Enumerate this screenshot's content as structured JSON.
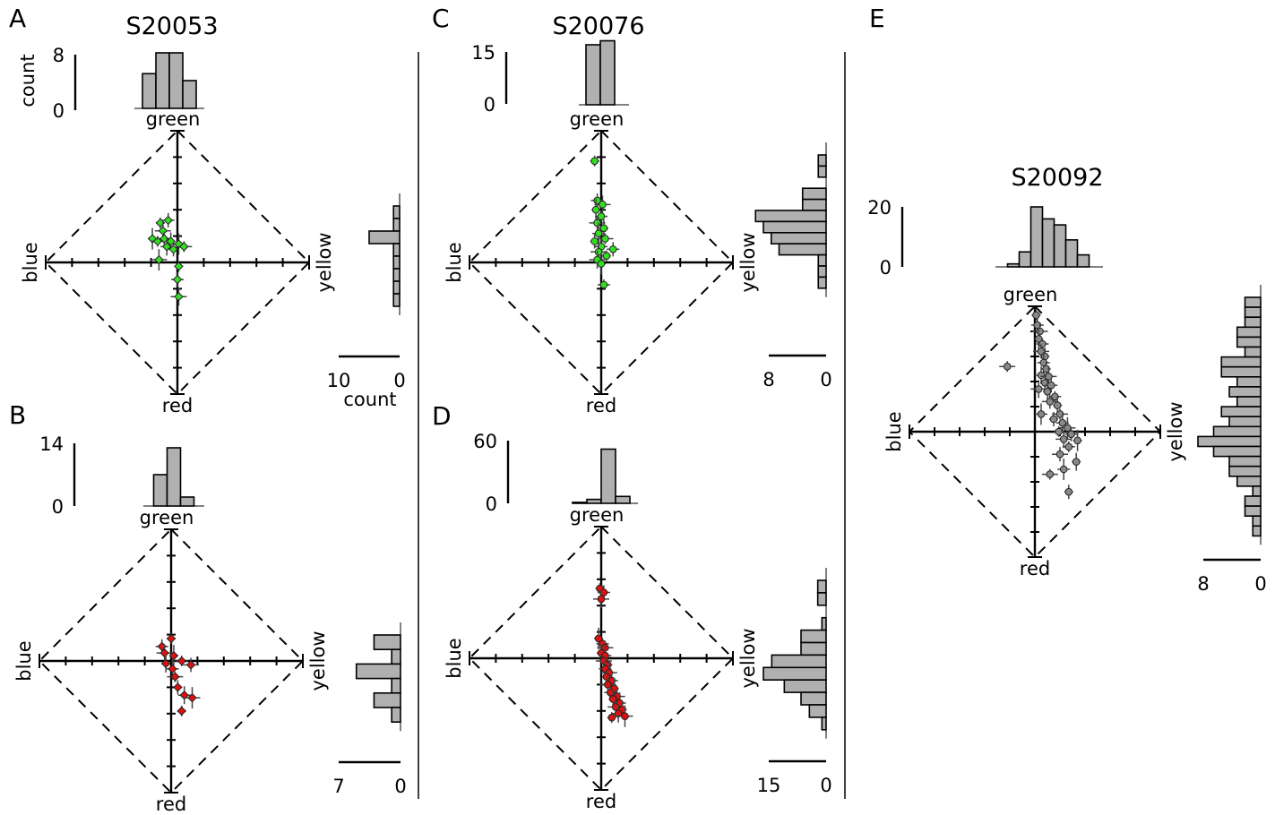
{
  "colors": {
    "green_marker": "#33dd22",
    "red_marker": "#dd1111",
    "gray_marker": "#888888",
    "bar_fill": "#b0b0b0",
    "line": "#000000"
  },
  "chart_data": [
    {
      "id": "A",
      "type": "scatter",
      "letter": "A",
      "title": "S20053",
      "axis_labels": {
        "top": "green",
        "bottom": "red",
        "left": "blue",
        "right": "yellow"
      },
      "xlim": [
        -1,
        1
      ],
      "ylim": [
        -1,
        1
      ],
      "marker_color": "#33dd22",
      "marker_shape": "diamond",
      "points": [
        {
          "x": -0.13,
          "y": 0.3
        },
        {
          "x": -0.07,
          "y": 0.32
        },
        {
          "x": -0.11,
          "y": 0.24
        },
        {
          "x": -0.19,
          "y": 0.18
        },
        {
          "x": -0.15,
          "y": 0.16
        },
        {
          "x": -0.1,
          "y": 0.18
        },
        {
          "x": -0.05,
          "y": 0.16
        },
        {
          "x": 0.01,
          "y": 0.14
        },
        {
          "x": 0.05,
          "y": 0.12
        },
        {
          "x": -0.03,
          "y": 0.1
        },
        {
          "x": -0.08,
          "y": 0.12
        },
        {
          "x": -0.14,
          "y": 0.02
        },
        {
          "x": 0.01,
          "y": -0.03
        },
        {
          "x": 0.0,
          "y": -0.13
        },
        {
          "x": 0.01,
          "y": -0.26
        }
      ],
      "top_hist": {
        "scale_max": 8,
        "scale_min": 0,
        "scale_label": "count",
        "counts": [
          5,
          8,
          8,
          4
        ]
      },
      "right_hist": {
        "scale_max": 10,
        "scale_min": 0,
        "scale_label": "count",
        "counts": [
          1,
          1,
          5,
          1,
          1,
          1,
          1,
          1
        ]
      }
    },
    {
      "id": "B",
      "type": "scatter",
      "letter": "B",
      "title": "",
      "axis_labels": {
        "top": "green",
        "bottom": "red",
        "left": "blue",
        "right": "yellow"
      },
      "xlim": [
        -1,
        1
      ],
      "ylim": [
        -1,
        1
      ],
      "marker_color": "#dd1111",
      "marker_shape": "diamond",
      "points": [
        {
          "x": 0.0,
          "y": 0.17
        },
        {
          "x": -0.07,
          "y": 0.11
        },
        {
          "x": -0.05,
          "y": 0.06
        },
        {
          "x": 0.02,
          "y": 0.04
        },
        {
          "x": 0.08,
          "y": 0.0
        },
        {
          "x": 0.15,
          "y": -0.03
        },
        {
          "x": -0.04,
          "y": -0.02
        },
        {
          "x": 0.01,
          "y": -0.06
        },
        {
          "x": 0.03,
          "y": -0.12
        },
        {
          "x": 0.05,
          "y": -0.2
        },
        {
          "x": 0.1,
          "y": -0.26
        },
        {
          "x": 0.16,
          "y": -0.28
        },
        {
          "x": 0.08,
          "y": -0.38
        }
      ],
      "top_hist": {
        "scale_max": 14,
        "scale_min": 0,
        "scale_label": "",
        "counts": [
          7,
          13,
          2
        ]
      },
      "right_hist": {
        "scale_max": 7,
        "scale_min": 0,
        "scale_label": "",
        "counts": [
          3,
          1,
          5,
          1,
          3,
          1
        ]
      }
    },
    {
      "id": "C",
      "type": "scatter",
      "letter": "C",
      "title": "S20076",
      "axis_labels": {
        "top": "green",
        "bottom": "red",
        "left": "blue",
        "right": "yellow"
      },
      "xlim": [
        -1,
        1
      ],
      "ylim": [
        -1,
        1
      ],
      "marker_color": "#33dd22",
      "marker_shape": "circle",
      "points": [
        {
          "x": -0.05,
          "y": 0.77
        },
        {
          "x": -0.03,
          "y": 0.47
        },
        {
          "x": 0.01,
          "y": 0.44
        },
        {
          "x": -0.04,
          "y": 0.4
        },
        {
          "x": 0.0,
          "y": 0.35
        },
        {
          "x": -0.03,
          "y": 0.3
        },
        {
          "x": 0.02,
          "y": 0.26
        },
        {
          "x": -0.02,
          "y": 0.22
        },
        {
          "x": 0.03,
          "y": 0.18
        },
        {
          "x": -0.05,
          "y": 0.16
        },
        {
          "x": 0.0,
          "y": 0.12
        },
        {
          "x": -0.02,
          "y": 0.08
        },
        {
          "x": 0.04,
          "y": 0.05
        },
        {
          "x": 0.09,
          "y": 0.1
        },
        {
          "x": -0.03,
          "y": 0.02
        },
        {
          "x": 0.0,
          "y": -0.01
        },
        {
          "x": 0.02,
          "y": -0.17
        }
      ],
      "top_hist": {
        "scale_max": 15,
        "scale_min": 0,
        "scale_label": "",
        "counts": [
          15,
          16
        ]
      },
      "right_hist": {
        "scale_max": 8,
        "scale_min": 0,
        "scale_label": "",
        "counts": [
          1,
          1,
          0,
          3,
          3,
          9,
          8,
          7,
          6,
          1,
          1,
          1
        ]
      }
    },
    {
      "id": "D",
      "type": "scatter",
      "letter": "D",
      "title": "",
      "axis_labels": {
        "top": "green",
        "bottom": "red",
        "left": "blue",
        "right": "yellow"
      },
      "xlim": [
        -1,
        1
      ],
      "ylim": [
        -1,
        1
      ],
      "marker_color": "#dd1111",
      "marker_shape": "circle",
      "points": [
        {
          "x": -0.01,
          "y": 0.53
        },
        {
          "x": 0.02,
          "y": 0.5
        },
        {
          "x": 0.0,
          "y": 0.45
        },
        {
          "x": -0.02,
          "y": 0.15
        },
        {
          "x": 0.01,
          "y": 0.11
        },
        {
          "x": 0.03,
          "y": 0.08
        },
        {
          "x": 0.0,
          "y": 0.04
        },
        {
          "x": 0.03,
          "y": 0.02
        },
        {
          "x": 0.02,
          "y": -0.02
        },
        {
          "x": 0.05,
          "y": -0.05
        },
        {
          "x": 0.03,
          "y": -0.08
        },
        {
          "x": 0.06,
          "y": -0.11
        },
        {
          "x": 0.04,
          "y": -0.14
        },
        {
          "x": 0.08,
          "y": -0.17
        },
        {
          "x": 0.05,
          "y": -0.2
        },
        {
          "x": 0.1,
          "y": -0.23
        },
        {
          "x": 0.07,
          "y": -0.26
        },
        {
          "x": 0.12,
          "y": -0.29
        },
        {
          "x": 0.09,
          "y": -0.31
        },
        {
          "x": 0.14,
          "y": -0.34
        },
        {
          "x": 0.11,
          "y": -0.37
        },
        {
          "x": 0.16,
          "y": -0.39
        },
        {
          "x": 0.13,
          "y": -0.42
        },
        {
          "x": 0.18,
          "y": -0.44
        },
        {
          "x": 0.08,
          "y": -0.45
        }
      ],
      "top_hist": {
        "scale_max": 60,
        "scale_min": 0,
        "scale_label": "",
        "counts": [
          1,
          4,
          55,
          7
        ]
      },
      "right_hist": {
        "scale_max": 15,
        "scale_min": 0,
        "scale_label": "",
        "counts": [
          2,
          2,
          0,
          1,
          6,
          6,
          13,
          15,
          10,
          6,
          4,
          1
        ]
      }
    },
    {
      "id": "E",
      "type": "scatter",
      "letter": "E",
      "title": "S20092",
      "axis_labels": {
        "top": "green",
        "bottom": "red",
        "left": "blue",
        "right": "yellow"
      },
      "xlim": [
        -1,
        1
      ],
      "ylim": [
        -1,
        1
      ],
      "marker_color": "#888888",
      "marker_shape": "circle",
      "points": [
        {
          "x": 0.01,
          "y": 0.93
        },
        {
          "x": 0.02,
          "y": 0.85
        },
        {
          "x": 0.04,
          "y": 0.8
        },
        {
          "x": 0.03,
          "y": 0.74
        },
        {
          "x": 0.06,
          "y": 0.7
        },
        {
          "x": 0.05,
          "y": 0.64
        },
        {
          "x": 0.08,
          "y": 0.6
        },
        {
          "x": 0.07,
          "y": 0.55
        },
        {
          "x": -0.22,
          "y": 0.52
        },
        {
          "x": 0.09,
          "y": 0.5
        },
        {
          "x": 0.05,
          "y": 0.45
        },
        {
          "x": 0.11,
          "y": 0.44
        },
        {
          "x": 0.08,
          "y": 0.39
        },
        {
          "x": 0.13,
          "y": 0.37
        },
        {
          "x": 0.03,
          "y": 0.34
        },
        {
          "x": 0.1,
          "y": 0.32
        },
        {
          "x": 0.16,
          "y": 0.28
        },
        {
          "x": 0.12,
          "y": 0.24
        },
        {
          "x": 0.18,
          "y": 0.21
        },
        {
          "x": 0.05,
          "y": 0.14
        },
        {
          "x": 0.2,
          "y": 0.14
        },
        {
          "x": 0.15,
          "y": 0.1
        },
        {
          "x": 0.22,
          "y": 0.07
        },
        {
          "x": 0.26,
          "y": 0.03
        },
        {
          "x": 0.19,
          "y": 0.0
        },
        {
          "x": 0.29,
          "y": -0.02
        },
        {
          "x": 0.23,
          "y": -0.06
        },
        {
          "x": 0.34,
          "y": -0.07
        },
        {
          "x": 0.27,
          "y": -0.12
        },
        {
          "x": 0.2,
          "y": -0.18
        },
        {
          "x": 0.33,
          "y": -0.24
        },
        {
          "x": 0.23,
          "y": -0.3
        },
        {
          "x": 0.12,
          "y": -0.34
        },
        {
          "x": 0.27,
          "y": -0.48
        }
      ],
      "top_hist": {
        "scale_max": 20,
        "scale_min": 0,
        "scale_label": "",
        "counts": [
          1,
          5,
          20,
          16,
          14,
          9,
          4
        ]
      },
      "right_hist": {
        "scale_max": 8,
        "scale_min": 0,
        "scale_label": "",
        "counts": [
          2,
          2,
          2,
          3,
          3,
          2,
          5,
          5,
          3,
          4,
          3,
          5,
          4,
          6,
          8,
          6,
          4,
          4,
          3,
          1,
          2,
          2,
          1,
          1
        ]
      }
    }
  ]
}
